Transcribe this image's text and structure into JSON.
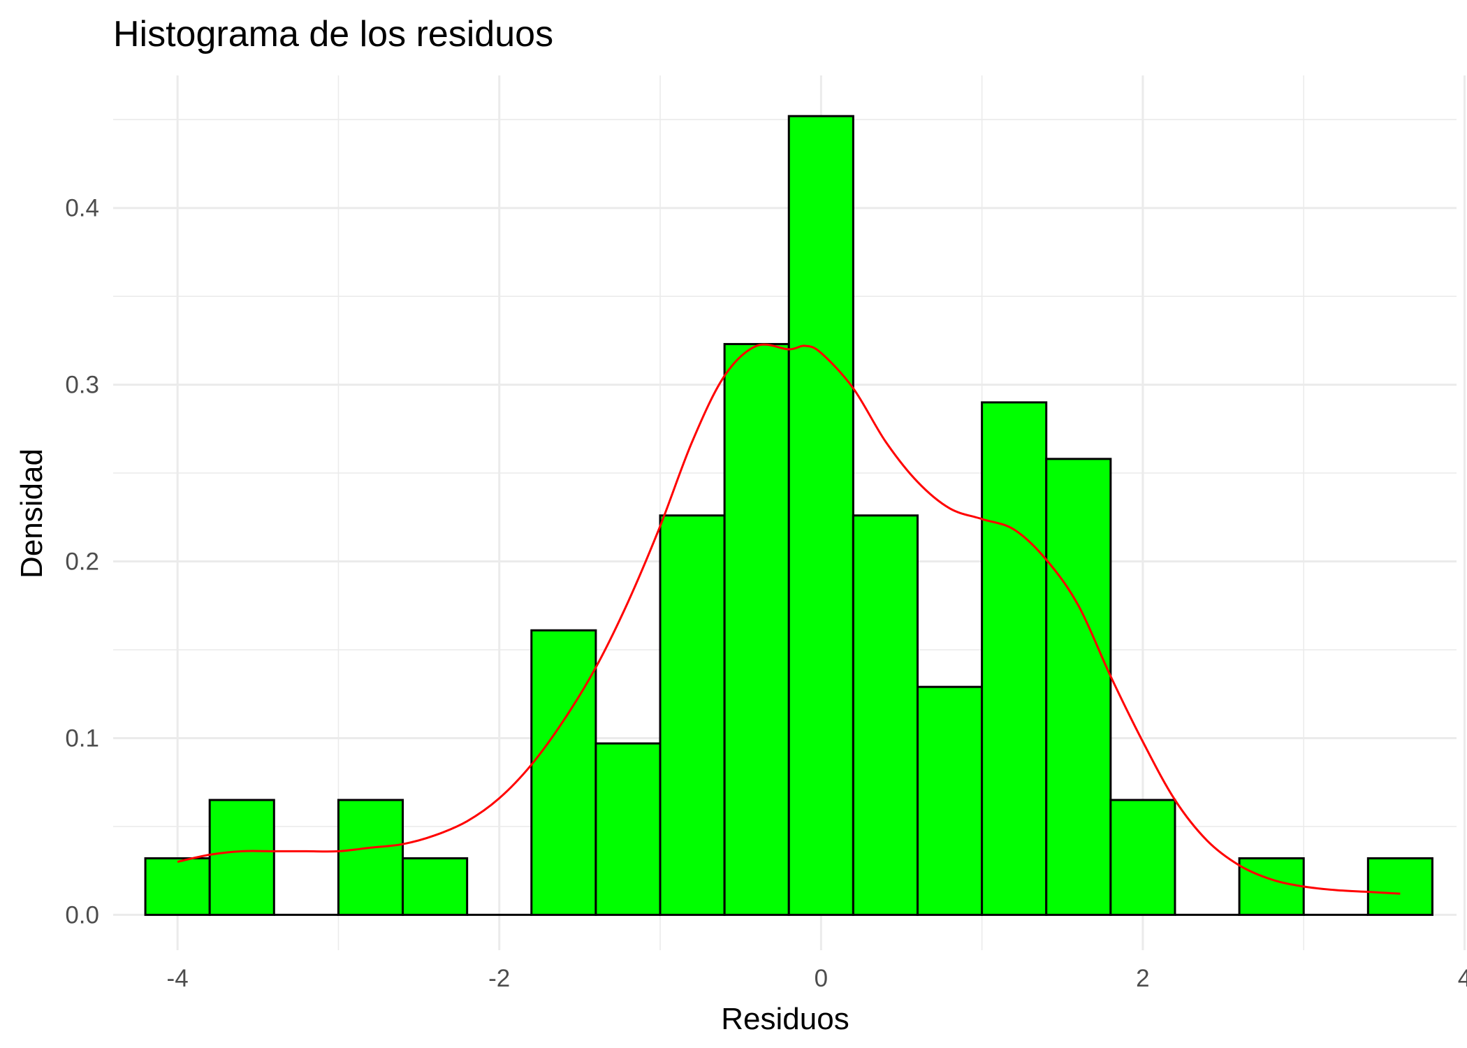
{
  "chart_data": {
    "type": "bar",
    "title": "Histograma de los residuos",
    "xlabel": "Residuos",
    "ylabel": "Densidad",
    "xlim": [
      -4.4,
      3.95
    ],
    "ylim": [
      -0.02,
      0.475
    ],
    "x_ticks": [
      -4,
      -2,
      0,
      2,
      4
    ],
    "x_tick_labels": [
      "-4",
      "-2",
      "0",
      "2",
      "4"
    ],
    "x_minor_ticks": [
      -3,
      -1,
      1,
      3
    ],
    "y_ticks": [
      0.0,
      0.1,
      0.2,
      0.3,
      0.4
    ],
    "y_tick_labels": [
      "0.0",
      "0.1",
      "0.2",
      "0.3",
      "0.4"
    ],
    "y_minor_ticks": [
      0.05,
      0.15,
      0.25,
      0.35,
      0.45
    ],
    "grid": true,
    "bin_width": 0.4,
    "bins": [
      {
        "x0": -4.2,
        "x1": -3.8,
        "value": 0.032
      },
      {
        "x0": -3.8,
        "x1": -3.4,
        "value": 0.065
      },
      {
        "x0": -3.4,
        "x1": -3.0,
        "value": 0.0
      },
      {
        "x0": -3.0,
        "x1": -2.6,
        "value": 0.065
      },
      {
        "x0": -2.6,
        "x1": -2.2,
        "value": 0.032
      },
      {
        "x0": -2.2,
        "x1": -1.8,
        "value": 0.0
      },
      {
        "x0": -1.8,
        "x1": -1.4,
        "value": 0.161
      },
      {
        "x0": -1.4,
        "x1": -1.0,
        "value": 0.097
      },
      {
        "x0": -1.0,
        "x1": -0.6,
        "value": 0.226
      },
      {
        "x0": -0.6,
        "x1": -0.2,
        "value": 0.323
      },
      {
        "x0": -0.2,
        "x1": 0.2,
        "value": 0.452
      },
      {
        "x0": 0.2,
        "x1": 0.6,
        "value": 0.226
      },
      {
        "x0": 0.6,
        "x1": 1.0,
        "value": 0.129
      },
      {
        "x0": 1.0,
        "x1": 1.4,
        "value": 0.29
      },
      {
        "x0": 1.4,
        "x1": 1.8,
        "value": 0.258
      },
      {
        "x0": 1.8,
        "x1": 2.2,
        "value": 0.065
      },
      {
        "x0": 2.2,
        "x1": 2.6,
        "value": 0.0
      },
      {
        "x0": 2.6,
        "x1": 3.0,
        "value": 0.032
      },
      {
        "x0": 3.0,
        "x1": 3.4,
        "value": 0.0
      },
      {
        "x0": 3.4,
        "x1": 3.8,
        "value": 0.032
      }
    ],
    "density_curve": {
      "x": [
        -4.0,
        -3.8,
        -3.6,
        -3.4,
        -3.2,
        -3.0,
        -2.8,
        -2.6,
        -2.4,
        -2.2,
        -2.0,
        -1.8,
        -1.6,
        -1.4,
        -1.2,
        -1.0,
        -0.8,
        -0.6,
        -0.4,
        -0.2,
        -0.1,
        0.0,
        0.2,
        0.4,
        0.6,
        0.8,
        1.0,
        1.2,
        1.4,
        1.6,
        1.8,
        2.0,
        2.2,
        2.4,
        2.6,
        2.8,
        3.0,
        3.2,
        3.4,
        3.6
      ],
      "y": [
        0.03,
        0.034,
        0.036,
        0.036,
        0.036,
        0.036,
        0.038,
        0.04,
        0.045,
        0.053,
        0.066,
        0.085,
        0.11,
        0.14,
        0.177,
        0.22,
        0.268,
        0.305,
        0.322,
        0.32,
        0.322,
        0.318,
        0.298,
        0.268,
        0.245,
        0.23,
        0.224,
        0.218,
        0.201,
        0.175,
        0.135,
        0.098,
        0.065,
        0.042,
        0.028,
        0.02,
        0.016,
        0.014,
        0.013,
        0.012
      ]
    },
    "colors": {
      "bar_fill": "#00ff00",
      "bar_outline": "#000000",
      "density_line": "#ff0000",
      "grid": "#ebebeb",
      "tick_text": "#4d4d4d",
      "text": "#000000"
    }
  }
}
